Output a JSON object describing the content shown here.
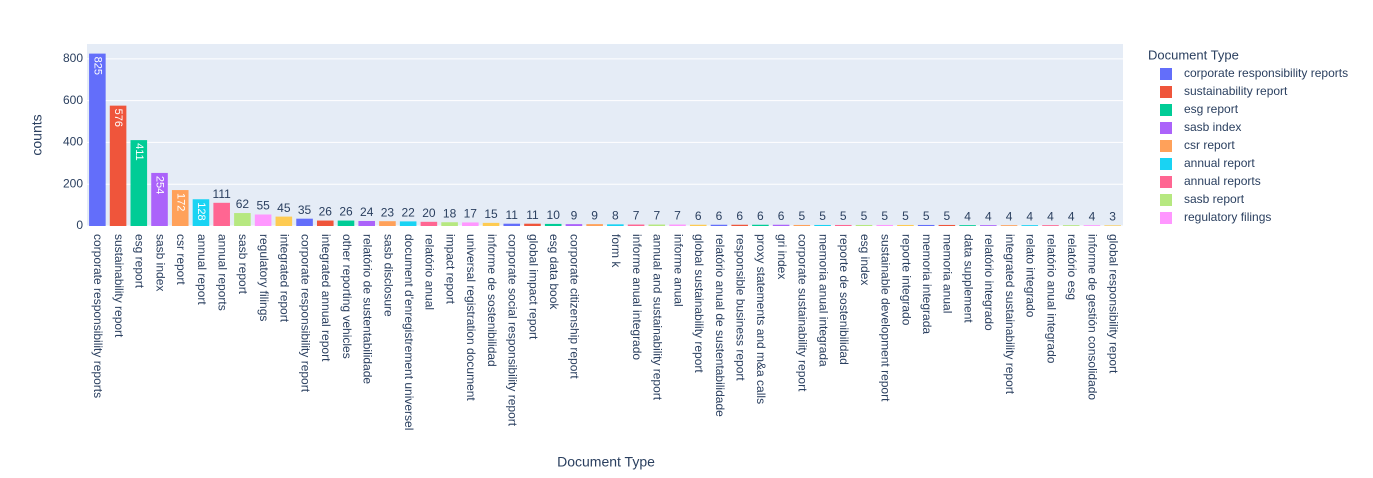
{
  "chart_data": {
    "type": "bar",
    "x_label": "Document Type",
    "y_label": "counts",
    "legend_title": "Document Type",
    "categories": [
      "corporate responsibility reports",
      "sustainability report",
      "esg report",
      "sasb index",
      "csr report",
      "annual report",
      "annual reports",
      "sasb report",
      "regulatory filings",
      "integrated report",
      "corporate responsibility report",
      "integrated annual report",
      "other reporting vehicles",
      "relatório de sustentabilidade",
      "sasb disclosure",
      "document d'enregistrement universel",
      "relatório anual",
      "impact report",
      "universal registration document",
      "informe de sostenibilidad",
      "corporate social responsibility report",
      "global impact report",
      "esg data book",
      "corporate citizenship report",
      null,
      "form k",
      "informe anual integrado",
      "annual and sustainability report",
      "informe anual",
      "global sustainability report",
      "relatório anual de sustentabilidade",
      "responsible business report",
      "proxy statements and m&a calls",
      "gri index",
      "corporate sustainability report",
      "memoria anual integrada",
      "reporte de sostenibilidad",
      "esg index",
      "sustainable development report",
      "reporte integrado",
      "memoria integrada",
      "memoria anual",
      "data supplement",
      "relatório integrado",
      "integrated sustainability report",
      "relato integrado",
      "relatório anual integrado",
      "relatório esg",
      "informe de gestión consolidado",
      "global responsibility report"
    ],
    "values": [
      825,
      576,
      411,
      254,
      172,
      128,
      111,
      62,
      55,
      45,
      35,
      26,
      26,
      24,
      23,
      22,
      20,
      18,
      17,
      15,
      11,
      11,
      10,
      9,
      9,
      8,
      7,
      7,
      7,
      6,
      6,
      6,
      6,
      6,
      5,
      5,
      5,
      5,
      5,
      5,
      5,
      5,
      4,
      4,
      4,
      4,
      4,
      4,
      4,
      3
    ],
    "colors": [
      "#636efa",
      "#EF553B",
      "#00cc96",
      "#ab63fa",
      "#FFA15A",
      "#19d3f3",
      "#FF6692",
      "#B6E880",
      "#FF97FF",
      "#FECB52"
    ],
    "legend_count": 9,
    "ylim": [
      0,
      871
    ],
    "yticks": [
      0,
      200,
      400,
      600,
      800
    ],
    "grid": true
  }
}
